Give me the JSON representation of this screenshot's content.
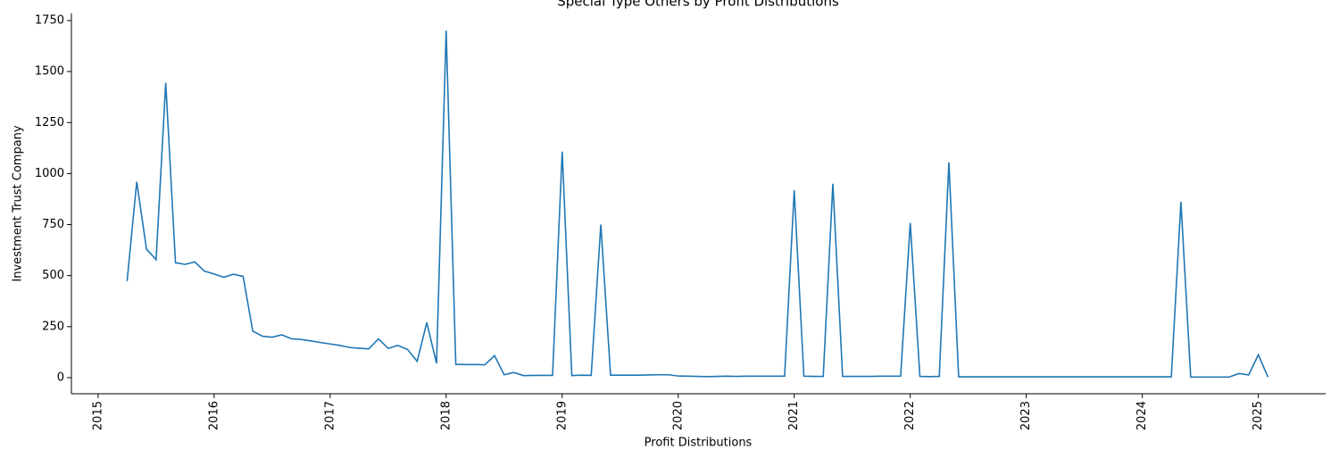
{
  "chart_data": {
    "type": "line",
    "title": "Special Type Others by Profit Distributions",
    "x_label": "Profit Distributions",
    "y_label": "Investment Trust Company",
    "x": [
      2015.25,
      2015.333,
      2015.417,
      2015.5,
      2015.583,
      2015.667,
      2015.75,
      2015.833,
      2015.917,
      2016.0,
      2016.083,
      2016.167,
      2016.25,
      2016.333,
      2016.417,
      2016.5,
      2016.583,
      2016.667,
      2016.75,
      2016.833,
      2016.917,
      2017.0,
      2017.083,
      2017.167,
      2017.25,
      2017.333,
      2017.417,
      2017.5,
      2017.583,
      2017.667,
      2017.75,
      2017.833,
      2017.917,
      2018.0,
      2018.083,
      2018.167,
      2018.25,
      2018.333,
      2018.417,
      2018.5,
      2018.583,
      2018.667,
      2018.75,
      2018.833,
      2018.917,
      2019.0,
      2019.083,
      2019.167,
      2019.25,
      2019.333,
      2019.417,
      2019.5,
      2019.583,
      2019.667,
      2019.75,
      2019.833,
      2019.917,
      2020.0,
      2020.083,
      2020.167,
      2020.25,
      2020.333,
      2020.417,
      2020.5,
      2020.583,
      2020.667,
      2020.75,
      2020.833,
      2020.917,
      2021.0,
      2021.083,
      2021.167,
      2021.25,
      2021.333,
      2021.417,
      2021.5,
      2021.583,
      2021.667,
      2021.75,
      2021.833,
      2021.917,
      2022.0,
      2022.083,
      2022.167,
      2022.25,
      2022.333,
      2022.417,
      2022.5,
      2022.583,
      2022.667,
      2022.75,
      2022.833,
      2022.917,
      2023.0,
      2023.083,
      2023.167,
      2023.25,
      2023.333,
      2023.417,
      2023.5,
      2023.583,
      2023.667,
      2023.75,
      2023.833,
      2023.917,
      2024.0,
      2024.083,
      2024.167,
      2024.25,
      2024.333,
      2024.417,
      2024.5,
      2024.583,
      2024.667,
      2024.75,
      2024.833,
      2024.917,
      2025.0,
      2025.083
    ],
    "series": [
      {
        "color": "#1f77b4",
        "values": [
          473,
          960,
          630,
          578,
          1445,
          563,
          555,
          567,
          522,
          508,
          492,
          507,
          496,
          228,
          203,
          198,
          210,
          190,
          187,
          180,
          172,
          165,
          158,
          148,
          144,
          141,
          190,
          143,
          158,
          138,
          80,
          270,
          70,
          1700,
          65,
          64,
          64,
          63,
          108,
          14,
          25,
          10,
          11,
          11,
          11,
          1108,
          10,
          12,
          11,
          750,
          12,
          12,
          12,
          12,
          13,
          14,
          14,
          8,
          7,
          6,
          5,
          6,
          7,
          6,
          7,
          7,
          7,
          7,
          7,
          918,
          7,
          6,
          6,
          950,
          6,
          6,
          6,
          6,
          7,
          7,
          7,
          758,
          6,
          5,
          6,
          1055,
          4,
          4,
          4,
          4,
          4,
          4,
          4,
          4,
          4,
          4,
          4,
          4,
          4,
          4,
          4,
          4,
          4,
          4,
          4,
          4,
          4,
          4,
          4,
          862,
          3,
          3,
          3,
          3,
          3,
          20,
          13,
          112,
          3
        ]
      }
    ],
    "xlim": [
      2014.77,
      2025.58
    ],
    "xticks": [
      2015,
      2016,
      2017,
      2018,
      2019,
      2020,
      2021,
      2022,
      2023,
      2024,
      2025
    ],
    "ylim": [
      -79,
      1785
    ],
    "yticks": [
      0,
      250,
      500,
      750,
      1000,
      1250,
      1500,
      1750
    ]
  }
}
